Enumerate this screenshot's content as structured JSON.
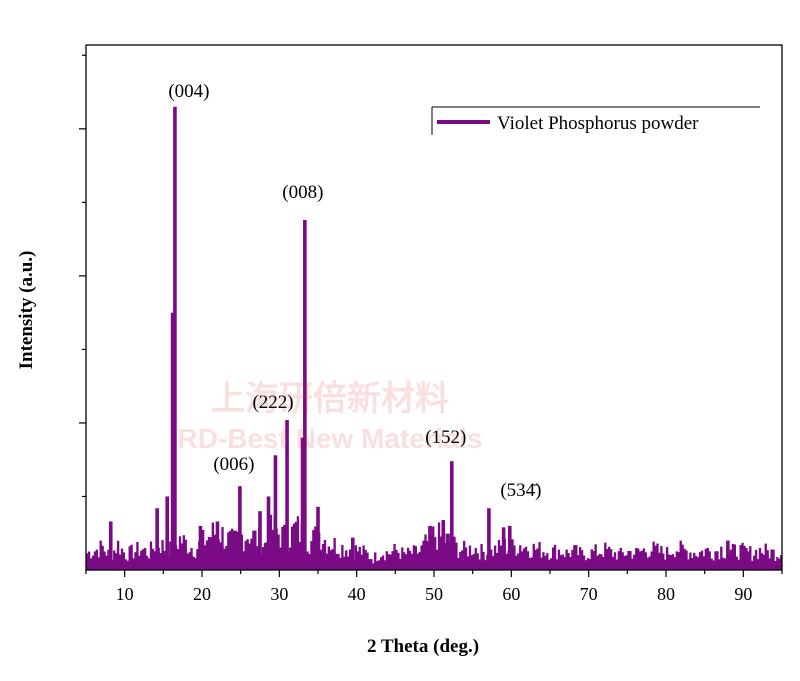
{
  "chart_data": {
    "type": "bar",
    "title": "",
    "xlabel": "2 Theta (deg.)",
    "ylabel": "Intensity (a.u.)",
    "xlim": [
      5,
      95
    ],
    "ylim": [
      0,
      3.57
    ],
    "xticks": [
      10,
      20,
      30,
      40,
      50,
      60,
      70,
      80,
      90
    ],
    "yticks_major": [
      1,
      2,
      3
    ],
    "ytick_labels_shown": false,
    "grid": false,
    "legend": {
      "placement": "top-right",
      "entries": [
        "Violet Phosphorus powder"
      ]
    },
    "color": "#7a0a85",
    "series": [
      {
        "name": "Violet Phosphorus powder",
        "peaks": [
          {
            "x": 8.2,
            "y": 0.33
          },
          {
            "x": 14.2,
            "y": 0.42
          },
          {
            "x": 15.5,
            "y": 0.5
          },
          {
            "x": 16.5,
            "y": 3.15
          },
          {
            "x": 16.2,
            "y": 1.75
          },
          {
            "x": 19.8,
            "y": 0.3
          },
          {
            "x": 22.0,
            "y": 0.33
          },
          {
            "x": 24.9,
            "y": 0.57
          },
          {
            "x": 27.5,
            "y": 0.4
          },
          {
            "x": 28.6,
            "y": 0.5
          },
          {
            "x": 29.5,
            "y": 0.78
          },
          {
            "x": 31.0,
            "y": 1.02
          },
          {
            "x": 33.3,
            "y": 2.38
          },
          {
            "x": 33.0,
            "y": 0.9
          },
          {
            "x": 35.0,
            "y": 0.43
          },
          {
            "x": 39.5,
            "y": 0.22
          },
          {
            "x": 49.5,
            "y": 0.3
          },
          {
            "x": 51.2,
            "y": 0.34
          },
          {
            "x": 52.3,
            "y": 0.74
          },
          {
            "x": 57.1,
            "y": 0.42
          },
          {
            "x": 59.0,
            "y": 0.29
          },
          {
            "x": 59.8,
            "y": 0.3
          },
          {
            "x": 88.0,
            "y": 0.2
          }
        ],
        "baseline": {
          "x_start": 5,
          "x_step": 1,
          "y": [
            0.12,
            0.14,
            0.16,
            0.1,
            0.18,
            0.11,
            0.13,
            0.15,
            0.12,
            0.2,
            0.16,
            0.14,
            0.22,
            0.18,
            0.15,
            0.2,
            0.25,
            0.28,
            0.22,
            0.2,
            0.24,
            0.26,
            0.22,
            0.18,
            0.3,
            0.25,
            0.22,
            0.3,
            0.24,
            0.2,
            0.27,
            0.2,
            0.18,
            0.16,
            0.15,
            0.14,
            0.12,
            0.08,
            0.13,
            0.12,
            0.14,
            0.11,
            0.12,
            0.13,
            0.2,
            0.25,
            0.22,
            0.2,
            0.15,
            0.14,
            0.16,
            0.13,
            0.12,
            0.15,
            0.17,
            0.16,
            0.18,
            0.16,
            0.15,
            0.14,
            0.13,
            0.14,
            0.12,
            0.13,
            0.11,
            0.12,
            0.13,
            0.14,
            0.12,
            0.11,
            0.13,
            0.12,
            0.14,
            0.15,
            0.13,
            0.12,
            0.16,
            0.14,
            0.13,
            0.12,
            0.14,
            0.13,
            0.15,
            0.12,
            0.14,
            0.13,
            0.12,
            0.14,
            0.13,
            0.12,
            0.13
          ]
        }
      }
    ],
    "annotations": [
      {
        "text": "(004)",
        "x": 16.5,
        "y": 3.15
      },
      {
        "text": "(008)",
        "x": 33.3,
        "y": 2.38
      },
      {
        "text": "(222)",
        "x": 31.0,
        "y": 1.02
      },
      {
        "text": "(006)",
        "x": 24.9,
        "y": 0.57
      },
      {
        "text": "(152)",
        "x": 52.3,
        "y": 0.74
      },
      {
        "text": "(534̄)",
        "x": 57.1,
        "y": 0.42
      }
    ]
  },
  "watermark": {
    "line1": "上海研倍新材料",
    "line2": "RD-Best New Materials"
  }
}
